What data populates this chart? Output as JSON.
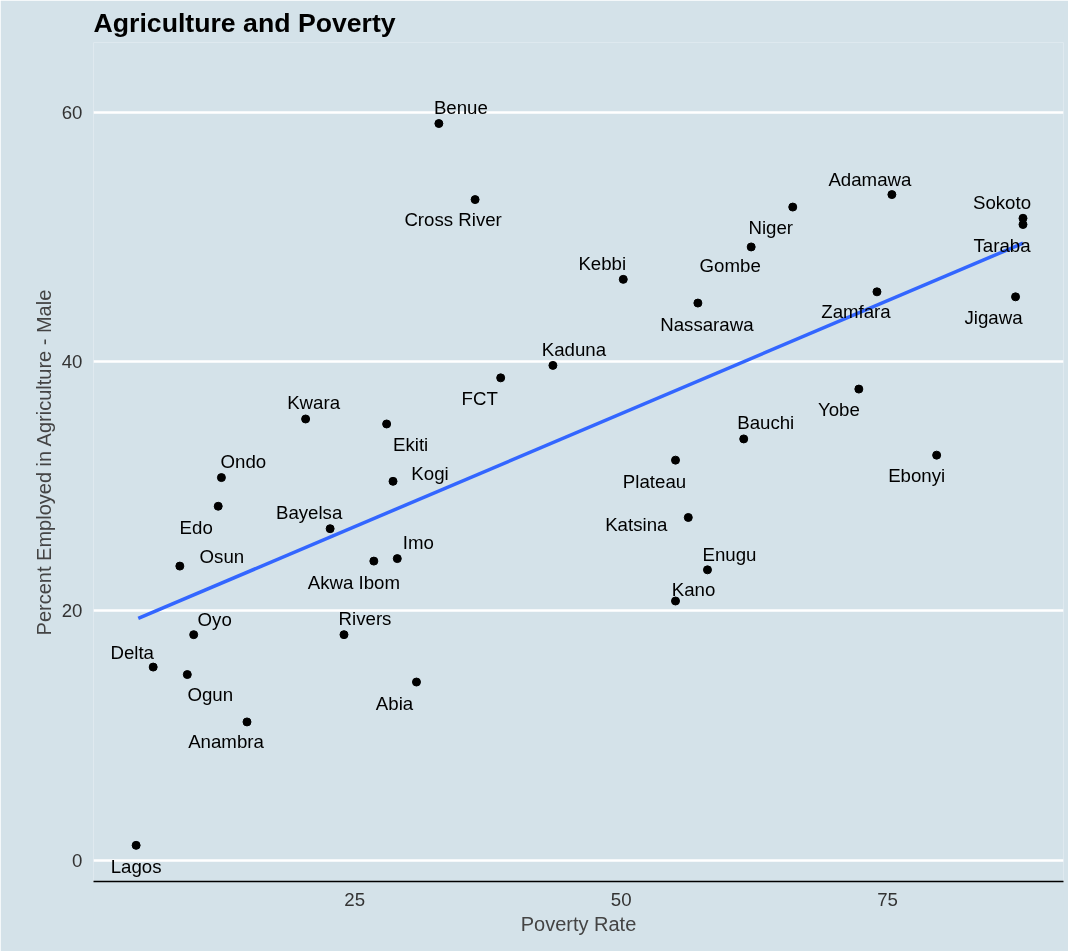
{
  "chart_data": {
    "type": "scatter",
    "title": "Agriculture and Poverty",
    "xlabel": "Poverty Rate",
    "ylabel": "Percent Employed in Agriculture - Male",
    "xlim": [
      0.5,
      91.5
    ],
    "ylim": [
      -1.7,
      65.6
    ],
    "xticks": [
      25,
      50,
      75
    ],
    "yticks": [
      0,
      20,
      40,
      60
    ],
    "grid": "y",
    "series": [
      {
        "marker": "circle",
        "color": "#000000",
        "x": [
          4.5,
          6.1,
          9.3,
          9.9,
          14.9,
          8.6,
          12.2,
          12.5,
          20.4,
          22.7,
          24.0,
          26.8,
          29.0,
          30.8,
          28.6,
          28.0,
          32.9,
          36.3,
          38.7,
          43.6,
          50.2,
          57.2,
          55.1,
          56.3,
          55.1,
          58.1,
          61.5,
          62.2,
          66.1,
          75.4,
          74.0,
          72.3,
          79.6,
          87.7,
          87.7,
          87.0
        ],
        "values": [
          1.2,
          15.5,
          14.9,
          18.1,
          11.1,
          23.6,
          28.4,
          30.7,
          35.4,
          26.6,
          18.1,
          24.0,
          24.2,
          14.3,
          30.4,
          35.0,
          59.1,
          53.0,
          38.7,
          39.7,
          46.6,
          44.7,
          32.1,
          27.5,
          20.8,
          23.3,
          33.8,
          49.2,
          52.4,
          53.4,
          45.6,
          37.8,
          32.5,
          51.5,
          51.0,
          45.2
        ]
      },
      {
        "type": "line",
        "color": "#3366ff",
        "x": [
          4.7,
          87.7
        ],
        "values": [
          19.4,
          49.5
        ]
      }
    ],
    "annotations": [
      {
        "text": "Lagos",
        "x": 4.5,
        "y": 1.2
      },
      {
        "text": "Delta",
        "x": 6.1,
        "y": 15.5
      },
      {
        "text": "Ogun",
        "x": 9.3,
        "y": 14.9
      },
      {
        "text": "Oyo",
        "x": 9.9,
        "y": 18.1
      },
      {
        "text": "Anambra",
        "x": 14.9,
        "y": 11.1
      },
      {
        "text": "Osun",
        "x": 8.6,
        "y": 23.6
      },
      {
        "text": "Edo",
        "x": 12.2,
        "y": 28.4
      },
      {
        "text": "Ondo",
        "x": 12.5,
        "y": 30.7
      },
      {
        "text": "Kwara",
        "x": 20.4,
        "y": 35.4
      },
      {
        "text": "Bayelsa",
        "x": 22.7,
        "y": 26.6
      },
      {
        "text": "Rivers",
        "x": 24.0,
        "y": 18.1
      },
      {
        "text": "Akwa Ibom",
        "x": 26.8,
        "y": 24.0
      },
      {
        "text": "Imo",
        "x": 29.0,
        "y": 24.2
      },
      {
        "text": "Abia",
        "x": 30.8,
        "y": 14.3
      },
      {
        "text": "Kogi",
        "x": 28.6,
        "y": 30.4
      },
      {
        "text": "Ekiti",
        "x": 28.0,
        "y": 35.0
      },
      {
        "text": "Benue",
        "x": 32.9,
        "y": 59.1
      },
      {
        "text": "Cross River",
        "x": 36.3,
        "y": 53.0
      },
      {
        "text": "FCT",
        "x": 38.7,
        "y": 38.7
      },
      {
        "text": "Kaduna",
        "x": 43.6,
        "y": 39.7
      },
      {
        "text": "Kebbi",
        "x": 50.2,
        "y": 46.6
      },
      {
        "text": "Nassarawa",
        "x": 57.2,
        "y": 44.7
      },
      {
        "text": "Plateau",
        "x": 55.1,
        "y": 32.1
      },
      {
        "text": "Katsina",
        "x": 56.3,
        "y": 27.5
      },
      {
        "text": "Kano",
        "x": 55.1,
        "y": 20.8
      },
      {
        "text": "Enugu",
        "x": 58.1,
        "y": 23.3
      },
      {
        "text": "Bauchi",
        "x": 61.5,
        "y": 33.8
      },
      {
        "text": "Gombe",
        "x": 62.2,
        "y": 49.2
      },
      {
        "text": "Niger",
        "x": 66.1,
        "y": 52.4
      },
      {
        "text": "Adamawa",
        "x": 75.4,
        "y": 53.4
      },
      {
        "text": "Zamfara",
        "x": 74.0,
        "y": 45.6
      },
      {
        "text": "Yobe",
        "x": 72.3,
        "y": 37.8
      },
      {
        "text": "Ebonyi",
        "x": 79.6,
        "y": 32.5
      },
      {
        "text": "Sokoto",
        "x": 87.7,
        "y": 51.5
      },
      {
        "text": "Taraba",
        "x": 87.7,
        "y": 51.0
      },
      {
        "text": "Jigawa",
        "x": 87.0,
        "y": 45.2
      }
    ]
  }
}
